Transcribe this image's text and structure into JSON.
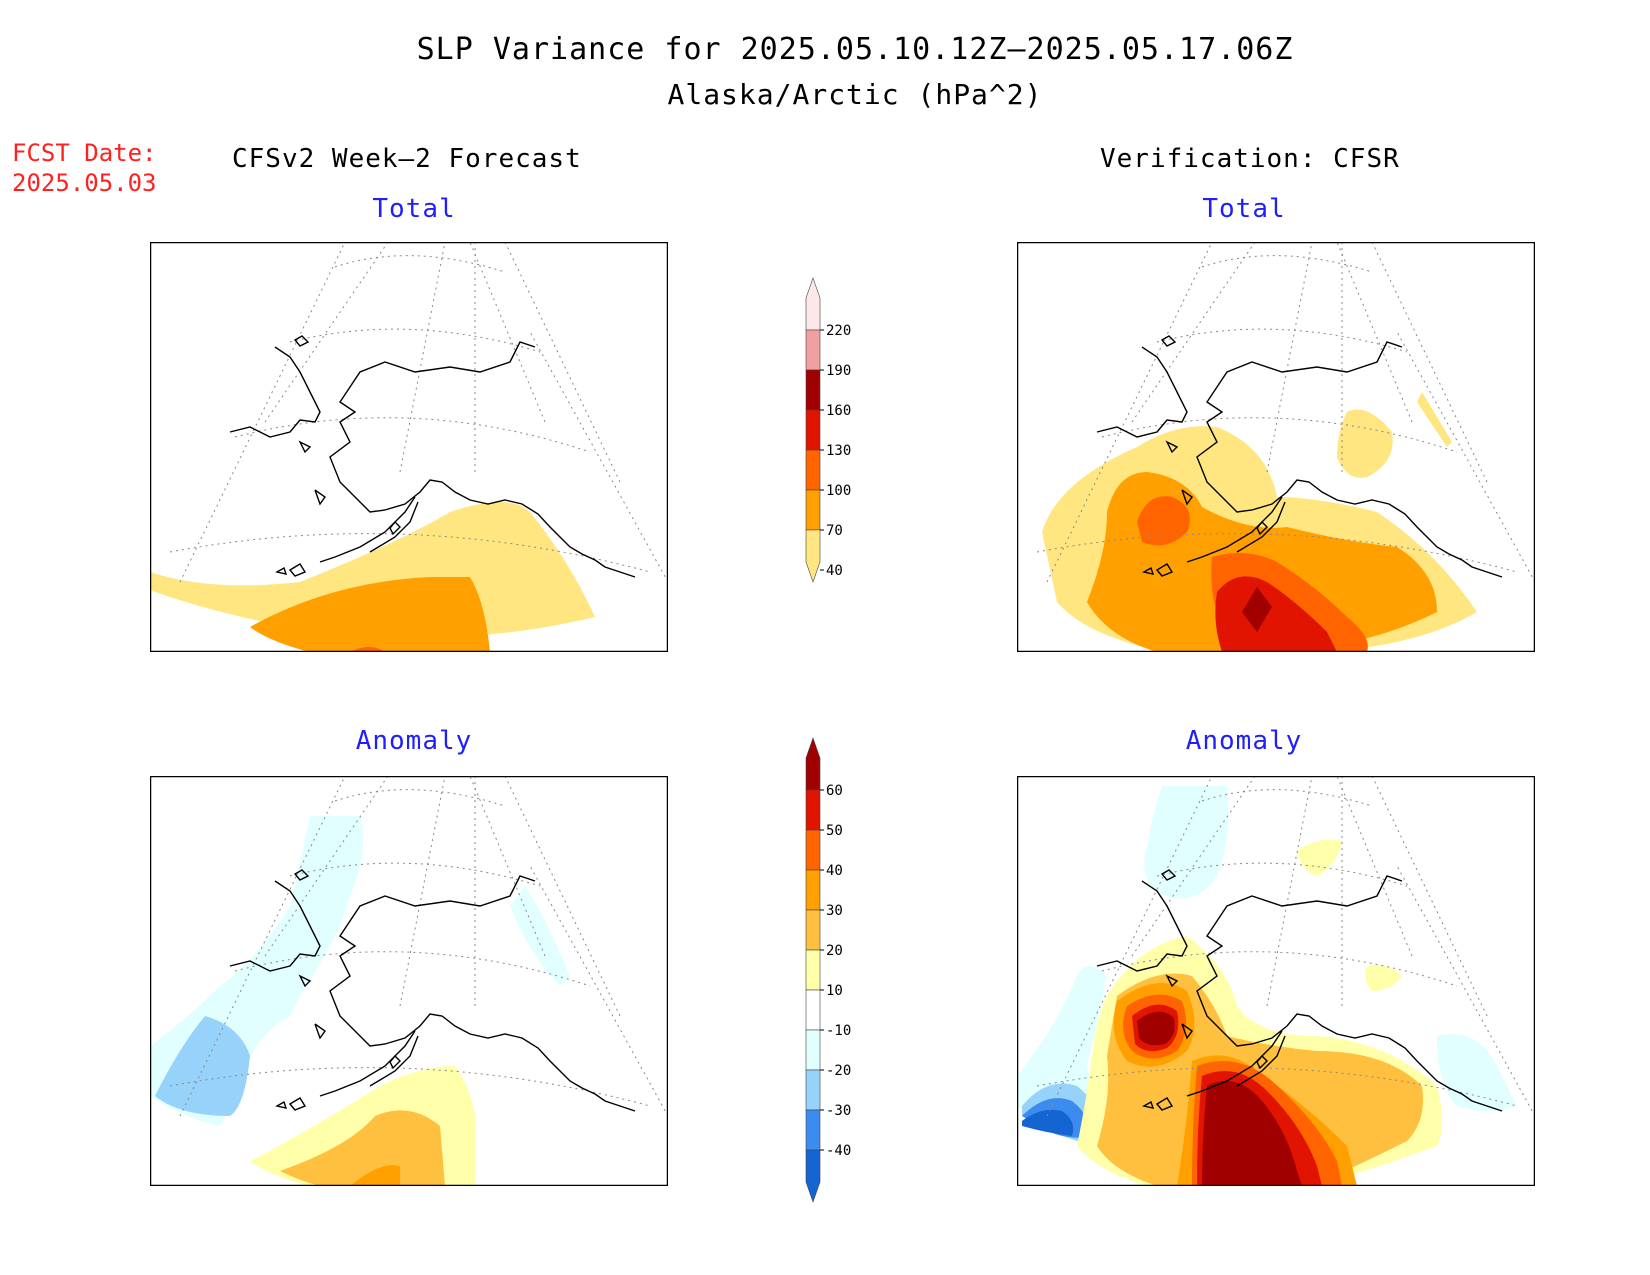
{
  "title": {
    "line1": "SLP Variance for 2025.05.10.12Z–2025.05.17.06Z",
    "line2": "Alaska/Arctic (hPa^2)"
  },
  "fcst_date": {
    "label": "FCST Date:",
    "value": "2025.05.03"
  },
  "columns": {
    "left_title": "CFSv2 Week–2 Forecast",
    "right_title": "Verification: CFSR"
  },
  "panels": {
    "forecast_total": {
      "subtitle": "Total"
    },
    "verification_total": {
      "subtitle": "Total"
    },
    "forecast_anomaly": {
      "subtitle": "Anomaly"
    },
    "verification_anomaly": {
      "subtitle": "Anomaly"
    }
  },
  "colorbars": {
    "total": {
      "levels": [
        "40",
        "70",
        "100",
        "130",
        "160",
        "190",
        "220"
      ],
      "colors": [
        "#ffe680",
        "#ffa000",
        "#ff6400",
        "#e01400",
        "#a00000",
        "#f0a0a0",
        "#fce8e8"
      ]
    },
    "anomaly": {
      "levels": [
        "-40",
        "-30",
        "-20",
        "-10",
        "10",
        "20",
        "30",
        "40",
        "50",
        "60"
      ],
      "colors": [
        "#1464d2",
        "#3c8cf0",
        "#96d2fa",
        "#e1ffff",
        "#ffffff",
        "#ffffaa",
        "#ffc040",
        "#ffa000",
        "#ff6400",
        "#e01400",
        "#a00000"
      ]
    }
  }
}
